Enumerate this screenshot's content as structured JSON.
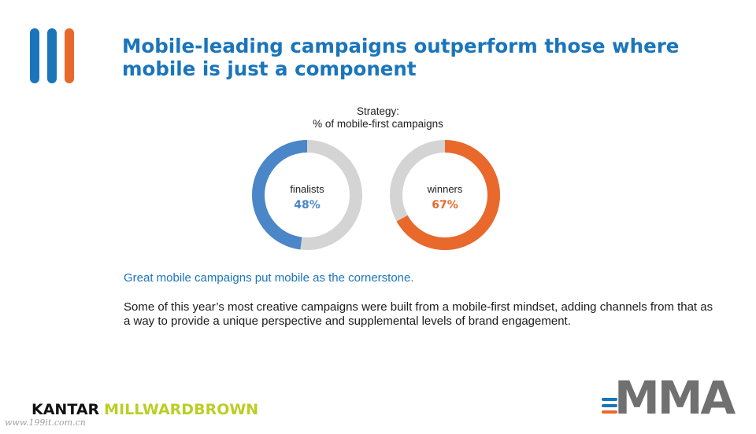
{
  "title_line1": "Mobile-leading campaigns outperform those where",
  "title_line2": "mobile is just a component",
  "chart_data": {
    "type": "pie",
    "variant": "donut",
    "title_line1": "Strategy:",
    "title_line2": "% of mobile-first campaigns",
    "series": [
      {
        "name": "finalists",
        "value": 48,
        "label": "48%",
        "color": "#4a86c8"
      },
      {
        "name": "winners",
        "value": 67,
        "label": "67%",
        "color": "#e8692b"
      }
    ],
    "remainder_color": "#d4d4d4",
    "max": 100
  },
  "subhead": "Great mobile campaigns put mobile as the cornerstone.",
  "body": "Some of this year’s most creative campaigns were built from a mobile-first mindset, adding channels from that as a way to provide a unique perspective and supplemental levels of brand engagement.",
  "footer": {
    "kantar": "KANTAR",
    "millward": "MILLWARDBROWN",
    "watermark": "www.199it.com.cn",
    "mma": "MMA"
  },
  "colors": {
    "brand_blue": "#1a75bb",
    "logo_orange": "#e8692b",
    "millward_green": "#b9cf25",
    "mma_gray": "#707070"
  }
}
